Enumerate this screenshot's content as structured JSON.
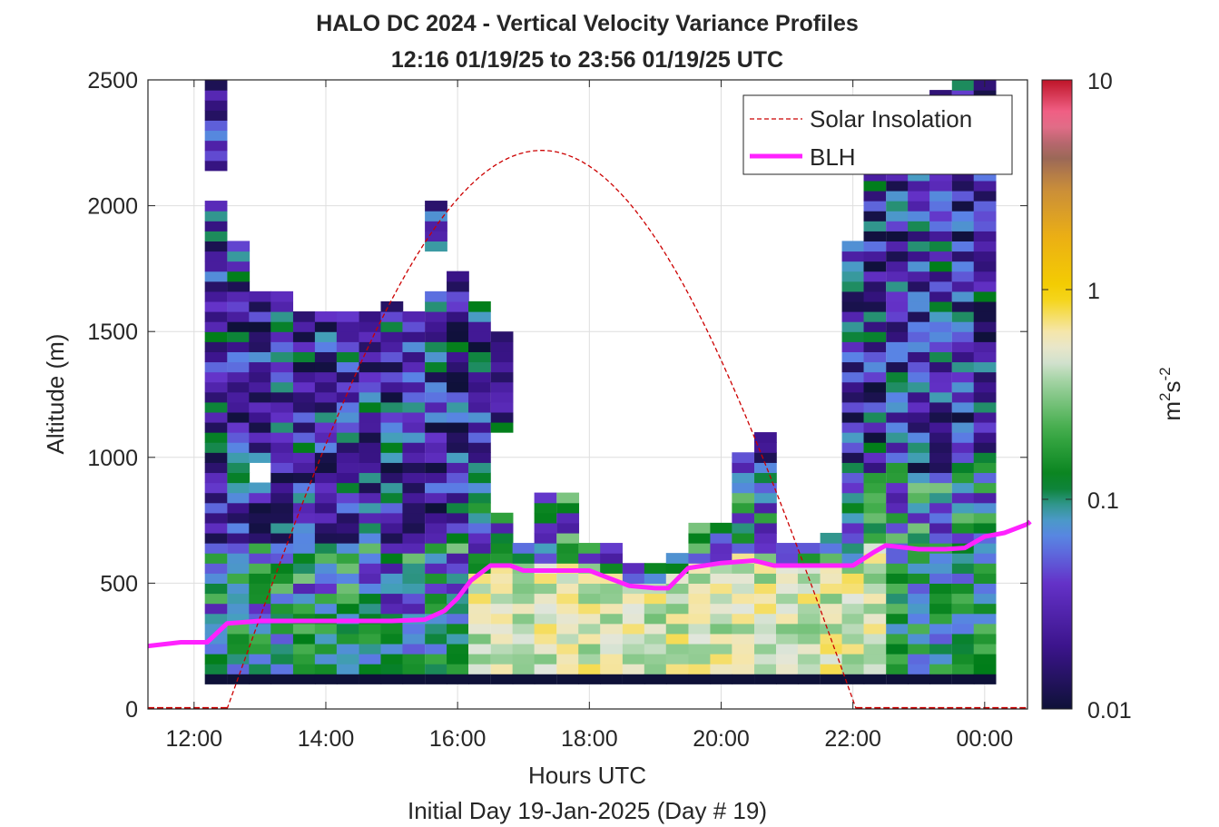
{
  "chart_data": {
    "type": "heatmap",
    "title": "HALO DC 2024 - Vertical Velocity Variance Profiles",
    "subtitle": "12:16 01/19/25 to 23:56 01/19/25  UTC",
    "xlabel": "Hours UTC",
    "xlabel2": "Initial Day 19-Jan-2025 (Day # 19)",
    "ylabel": "Altitude (m)",
    "colorbar_label_base": "m",
    "colorbar_label_exp1": "2",
    "colorbar_label_mid": "s",
    "colorbar_label_exp2": "-2",
    "xlim": [
      11.3,
      24.65
    ],
    "ylim": [
      0,
      2500
    ],
    "x_ticks": [
      12,
      14,
      16,
      18,
      20,
      22,
      24
    ],
    "x_tick_labels": [
      "12:00",
      "14:00",
      "16:00",
      "18:00",
      "20:00",
      "22:00",
      "00:00"
    ],
    "y_ticks": [
      0,
      500,
      1000,
      1500,
      2000,
      2500
    ],
    "y_tick_labels": [
      "0",
      "500",
      "1000",
      "1500",
      "2000",
      "2500"
    ],
    "color_scale": "log",
    "clim": [
      0.01,
      10
    ],
    "colorbar_ticks": [
      0.01,
      0.1,
      1,
      10
    ],
    "colorbar_tick_labels": [
      "0.01",
      "0.1",
      "1",
      "10"
    ],
    "grid": true,
    "legend_position": "top-right",
    "legend": [
      {
        "label": "Solar Insolation",
        "style": "dashed",
        "color": "#cc0000"
      },
      {
        "label": "BLH",
        "style": "solid",
        "color": "#ff22ff"
      }
    ],
    "series": [
      {
        "name": "BLH",
        "color": "#ff22ff",
        "x": [
          11.3,
          11.8,
          12.2,
          12.5,
          13.0,
          13.5,
          14.0,
          14.5,
          15.0,
          15.5,
          15.8,
          16.0,
          16.2,
          16.5,
          16.8,
          17.0,
          17.5,
          18.0,
          18.3,
          18.6,
          19.0,
          19.2,
          19.5,
          20.0,
          20.5,
          20.8,
          21.2,
          21.5,
          22.0,
          22.3,
          22.5,
          23.0,
          23.4,
          23.7,
          24.0,
          24.3,
          24.65
        ],
        "y": [
          250,
          265,
          265,
          340,
          350,
          350,
          350,
          350,
          350,
          355,
          390,
          440,
          510,
          570,
          570,
          550,
          550,
          550,
          520,
          490,
          480,
          480,
          560,
          580,
          590,
          570,
          570,
          570,
          570,
          620,
          650,
          635,
          635,
          640,
          685,
          700,
          735
        ]
      }
    ],
    "solar_insolation": {
      "sunrise_hour": 12.5,
      "sunset_hour": 22.05,
      "peak_hour": 17.25,
      "peak_altitude_equivalent": 2220
    },
    "heatmap": {
      "bin_width_hours": 0.333,
      "bin_height_m": 40,
      "first_bin_center_hour": 12.33,
      "profiles": [
        {
          "t": 12.33,
          "top": 2500,
          "gaps": [
            [
              2000,
              2120
            ]
          ]
        },
        {
          "t": 12.67,
          "top": 1840,
          "gaps": []
        },
        {
          "t": 13.0,
          "top": 1640,
          "gaps": [
            [
              900,
              960
            ]
          ]
        },
        {
          "t": 13.33,
          "top": 1640,
          "gaps": []
        },
        {
          "t": 13.67,
          "top": 1580,
          "gaps": []
        },
        {
          "t": 14.0,
          "top": 1580,
          "gaps": []
        },
        {
          "t": 14.33,
          "top": 1580,
          "gaps": []
        },
        {
          "t": 14.67,
          "top": 1580,
          "gaps": []
        },
        {
          "t": 15.0,
          "top": 1620,
          "gaps": []
        },
        {
          "t": 15.33,
          "top": 1580,
          "gaps": []
        },
        {
          "t": 15.67,
          "top": 2020,
          "gaps": [
            [
              1640,
              1800
            ]
          ]
        },
        {
          "t": 16.0,
          "top": 1720,
          "gaps": []
        },
        {
          "t": 16.33,
          "top": 1620,
          "gaps": []
        },
        {
          "t": 16.67,
          "top": 1480,
          "gaps": [
            [
              760,
              1080
            ]
          ]
        },
        {
          "t": 17.0,
          "top": 640,
          "gaps": []
        },
        {
          "t": 17.33,
          "top": 860,
          "gaps": []
        },
        {
          "t": 17.67,
          "top": 860,
          "gaps": []
        },
        {
          "t": 18.0,
          "top": 640,
          "gaps": []
        },
        {
          "t": 18.33,
          "top": 640,
          "gaps": []
        },
        {
          "t": 18.67,
          "top": 560,
          "gaps": []
        },
        {
          "t": 19.0,
          "top": 560,
          "gaps": []
        },
        {
          "t": 19.33,
          "top": 620,
          "gaps": []
        },
        {
          "t": 19.67,
          "top": 720,
          "gaps": []
        },
        {
          "t": 20.0,
          "top": 720,
          "gaps": []
        },
        {
          "t": 20.33,
          "top": 1020,
          "gaps": []
        },
        {
          "t": 20.67,
          "top": 1100,
          "gaps": []
        },
        {
          "t": 21.0,
          "top": 640,
          "gaps": []
        },
        {
          "t": 21.33,
          "top": 660,
          "gaps": []
        },
        {
          "t": 21.67,
          "top": 680,
          "gaps": []
        },
        {
          "t": 22.0,
          "top": 1840,
          "gaps": []
        },
        {
          "t": 22.33,
          "top": 2120,
          "gaps": []
        },
        {
          "t": 22.67,
          "top": 2200,
          "gaps": []
        },
        {
          "t": 23.0,
          "top": 2200,
          "gaps": []
        },
        {
          "t": 23.33,
          "top": 2440,
          "gaps": []
        },
        {
          "t": 23.67,
          "top": 2500,
          "gaps": []
        },
        {
          "t": 24.0,
          "top": 2500,
          "gaps": []
        }
      ]
    }
  }
}
